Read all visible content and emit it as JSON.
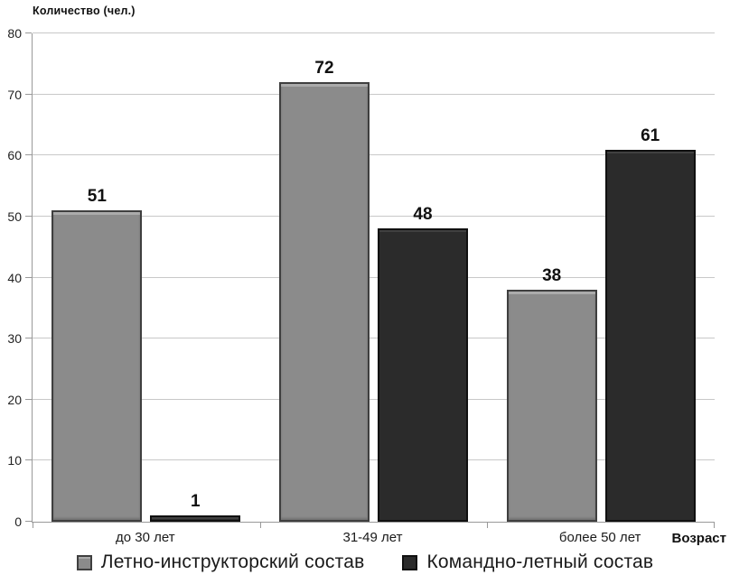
{
  "chart_data": {
    "type": "bar",
    "title": "",
    "ylabel": "Количество (чел.)",
    "xlabel": "Возраст",
    "categories": [
      "до 30 лет",
      "31-49 лет",
      "более 50 лет"
    ],
    "series": [
      {
        "name": "Летно-инструкторский состав",
        "color": "#8b8b8b",
        "border_color": "#3f3f3f",
        "values": [
          51,
          72,
          38
        ]
      },
      {
        "name": "Командно-летный состав",
        "color": "#2b2b2b",
        "border_color": "#101010",
        "values": [
          1,
          48,
          61
        ]
      }
    ],
    "ylim": [
      0,
      80
    ],
    "yticks": [
      0,
      10,
      20,
      30,
      40,
      50,
      60,
      70,
      80
    ],
    "grid": true,
    "legend_position": "bottom",
    "colors": {
      "gridline": "#c8c8c8",
      "axis": "#999999",
      "background": "#ffffff",
      "text": "#1a1a1a"
    }
  }
}
